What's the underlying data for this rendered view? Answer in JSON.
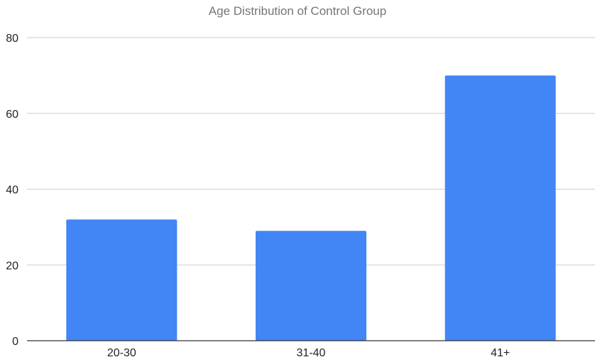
{
  "chart_data": {
    "type": "bar",
    "title": "Age Distribution of Control Group",
    "categories": [
      "20-30",
      "31-40",
      "41+"
    ],
    "values": [
      32,
      29,
      70
    ],
    "xlabel": "",
    "ylabel": "",
    "ylim": [
      0,
      80
    ],
    "yticks": [
      0,
      20,
      40,
      60,
      80
    ],
    "grid": true,
    "legend": "none",
    "bar_color": "#4285F4"
  }
}
